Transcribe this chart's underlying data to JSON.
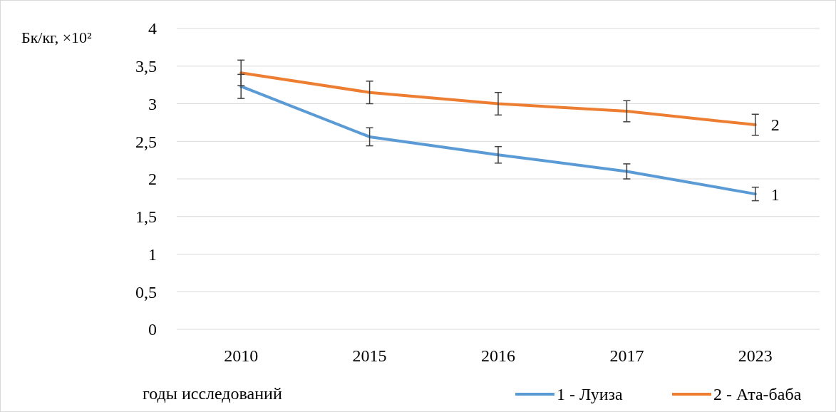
{
  "chart_data": {
    "type": "line",
    "ylabel": "Бк/кг, ×10²",
    "xlabel": "годы исследований",
    "categories": [
      "2010",
      "2015",
      "2016",
      "2017",
      "2023"
    ],
    "series": [
      {
        "name": "1 - Луиза",
        "color": "#5b9bd5",
        "values": [
          3.23,
          2.56,
          2.32,
          2.1,
          1.8
        ],
        "errors": [
          0.16,
          0.12,
          0.11,
          0.1,
          0.09
        ]
      },
      {
        "name": "2 - Ата-баба",
        "color": "#ed7d31",
        "values": [
          3.41,
          3.15,
          3.0,
          2.9,
          2.72
        ],
        "errors": [
          0.17,
          0.15,
          0.15,
          0.14,
          0.14
        ]
      }
    ],
    "ylim": [
      0,
      4
    ],
    "yticks": [
      0,
      {
        "value": 0.5,
        "label": "0,5"
      },
      1,
      {
        "value": 1.5,
        "label": "1,5"
      },
      2,
      {
        "value": 2.5,
        "label": "2,5"
      },
      3,
      {
        "value": 3.5,
        "label": "3,5"
      },
      4
    ],
    "grid": "y",
    "legend": "bottom right",
    "marker": "none",
    "line_style": "solid",
    "annotations": [
      {
        "text": "1",
        "x": "2023",
        "y": 1.8
      },
      {
        "text": "2",
        "x": "2023",
        "y": 2.72
      }
    ]
  }
}
